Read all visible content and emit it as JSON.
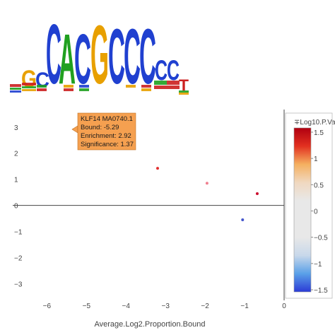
{
  "logo": {
    "letters": [
      "G",
      "C",
      "C",
      "A",
      "C",
      "G",
      "C",
      "C",
      "C",
      "C",
      "C",
      "T"
    ]
  },
  "tooltip": {
    "name": "KLF14 MA0740.1",
    "bound": "Bound: -5.29",
    "enrichment": "Enrichment: 2.92",
    "significance": "Significance: 1.37"
  },
  "colorbar": {
    "title": "∓Log10.P.Va",
    "ticks": [
      "1.5",
      "1",
      "0.5",
      "0",
      "−0.5",
      "−1",
      "−1.5"
    ],
    "colors": [
      "#2b3bd6",
      "#5aa0e8",
      "#c8d8ea",
      "#e8e8e8",
      "#e8e8e8",
      "#e8e8e8",
      "#f0d8c0",
      "#f5b060",
      "#e23020",
      "#b00010"
    ]
  },
  "chart_data": {
    "type": "scatter",
    "xlabel": "Average.Log2.Proportion.Bound",
    "ylabel": "",
    "xlim": [
      -6.4,
      0
    ],
    "ylim": [
      -3.5,
      3.4
    ],
    "x_ticks": [
      "−6",
      "−5",
      "−4",
      "−3",
      "−2",
      "−1",
      "0"
    ],
    "y_ticks": [
      "3",
      "2",
      "1",
      "0",
      "−1",
      "−2",
      "−3"
    ],
    "points": [
      {
        "x": -5.29,
        "y": 2.92,
        "color": "#ffffff"
      },
      {
        "x": -3.2,
        "y": 1.42,
        "color": "#e23030"
      },
      {
        "x": -1.95,
        "y": 0.85,
        "color": "#f08090"
      },
      {
        "x": -0.68,
        "y": 0.45,
        "color": "#cc1030"
      },
      {
        "x": -1.05,
        "y": -0.55,
        "color": "#4455cc"
      }
    ]
  }
}
